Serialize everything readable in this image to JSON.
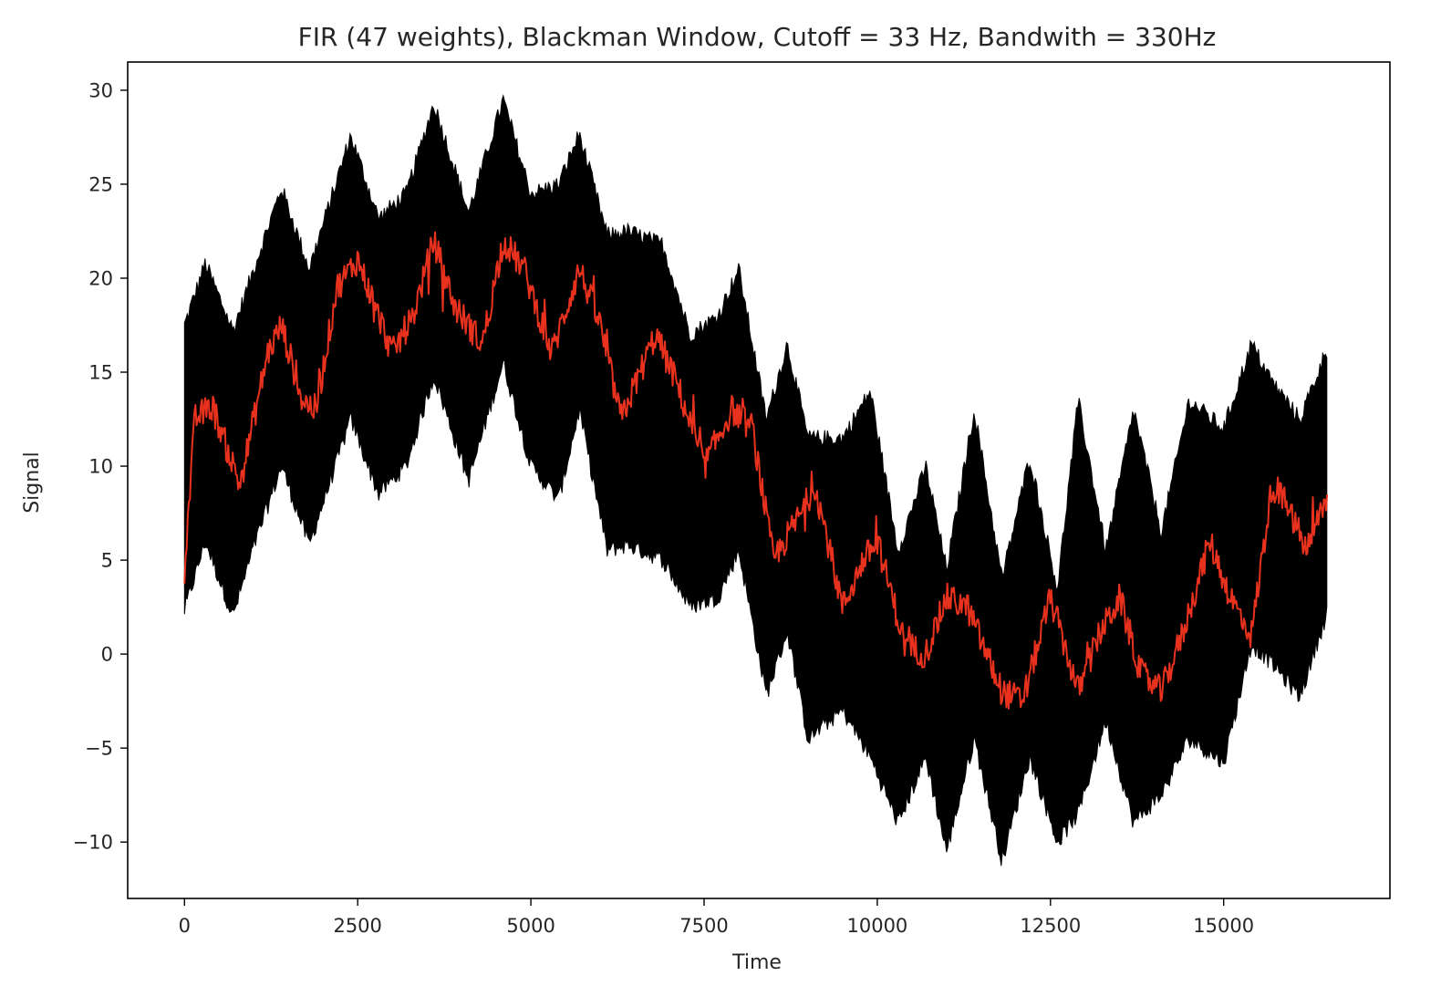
{
  "chart_data": {
    "type": "line",
    "title": "FIR (47 weights), Blackman Window, Cutoff = 33 Hz, Bandwith = 330Hz",
    "xlabel": "Time",
    "ylabel": "Signal",
    "xlim": [
      -820,
      17400
    ],
    "ylim": [
      -13,
      31.5
    ],
    "xticks": [
      0,
      2500,
      5000,
      7500,
      10000,
      12500,
      15000
    ],
    "yticks": [
      -10,
      -5,
      0,
      5,
      10,
      15,
      20,
      25,
      30
    ],
    "xtick_labels": [
      "0",
      "2500",
      "5000",
      "7500",
      "10000",
      "12500",
      "15000"
    ],
    "ytick_labels": [
      "−10",
      "−5",
      "0",
      "5",
      "10",
      "15",
      "20",
      "25",
      "30"
    ],
    "grid": false,
    "legend": "none",
    "series": [
      {
        "role": "raw signal (dense noisy band)",
        "color": "#000000",
        "x": [
          0,
          300,
          700,
          1000,
          1400,
          1800,
          2400,
          2800,
          3200,
          3600,
          4100,
          4600,
          5000,
          5400,
          5700,
          6100,
          6400,
          6900,
          7300,
          7700,
          8000,
          8400,
          8700,
          9000,
          9500,
          9900,
          10300,
          10700,
          11000,
          11400,
          11800,
          12200,
          12600,
          12900,
          13300,
          13700,
          14100,
          14500,
          15000,
          15400,
          15700,
          16100,
          16500
        ],
        "y_upper": [
          17.5,
          20.8,
          17.2,
          20.5,
          24.8,
          20.5,
          27.6,
          23.2,
          24.5,
          29.3,
          23.5,
          29.5,
          24.5,
          25.0,
          27.7,
          22.3,
          22.5,
          21.8,
          17.0,
          18.0,
          20.5,
          12.5,
          16.5,
          11.5,
          11.5,
          14.0,
          5.5,
          10.0,
          4.5,
          13.0,
          4.0,
          10.5,
          3.5,
          13.5,
          5.5,
          13.0,
          6.5,
          13.5,
          12.0,
          16.5,
          14.5,
          12.5,
          16.3
        ],
        "y_lower": [
          2.3,
          6.0,
          2.0,
          5.7,
          10.0,
          5.8,
          12.5,
          8.5,
          10.0,
          14.8,
          9.2,
          15.5,
          10.0,
          8.2,
          13.0,
          5.5,
          5.8,
          5.0,
          2.5,
          3.0,
          5.5,
          -2.2,
          1.2,
          -4.5,
          -3.0,
          -5.5,
          -9.0,
          -5.5,
          -10.5,
          -4.5,
          -11.0,
          -5.5,
          -10.0,
          -8.5,
          -3.5,
          -9.0,
          -7.5,
          -4.5,
          -5.8,
          0.5,
          -0.5,
          -2.3,
          2.3
        ]
      },
      {
        "role": "filtered signal",
        "color": "#e8321e",
        "x": [
          0,
          150,
          400,
          800,
          1200,
          1400,
          1700,
          1900,
          2200,
          2500,
          3000,
          3300,
          3600,
          3900,
          4300,
          4600,
          4900,
          5300,
          5700,
          6000,
          6300,
          6800,
          7100,
          7500,
          7900,
          8200,
          8500,
          8900,
          9100,
          9500,
          9800,
          10000,
          10400,
          10700,
          11000,
          11300,
          11800,
          12100,
          12500,
          12900,
          13200,
          13500,
          13800,
          14100,
          14400,
          14800,
          15100,
          15400,
          15700,
          15900,
          16200,
          16500
        ],
        "y": [
          4.5,
          12.5,
          13.2,
          9.0,
          16.0,
          17.5,
          13.5,
          13.0,
          19.5,
          21.0,
          16.0,
          18.0,
          22.0,
          18.5,
          16.5,
          22.0,
          20.5,
          16.0,
          20.5,
          17.5,
          12.5,
          17.0,
          14.5,
          10.0,
          13.0,
          12.0,
          5.0,
          7.5,
          9.0,
          2.5,
          5.0,
          6.0,
          0.5,
          0.0,
          3.0,
          2.5,
          -2.0,
          -2.5,
          3.0,
          -2.0,
          1.0,
          3.0,
          -1.0,
          -2.0,
          1.0,
          6.0,
          3.0,
          1.0,
          9.0,
          8.0,
          5.5,
          8.5
        ]
      }
    ]
  }
}
